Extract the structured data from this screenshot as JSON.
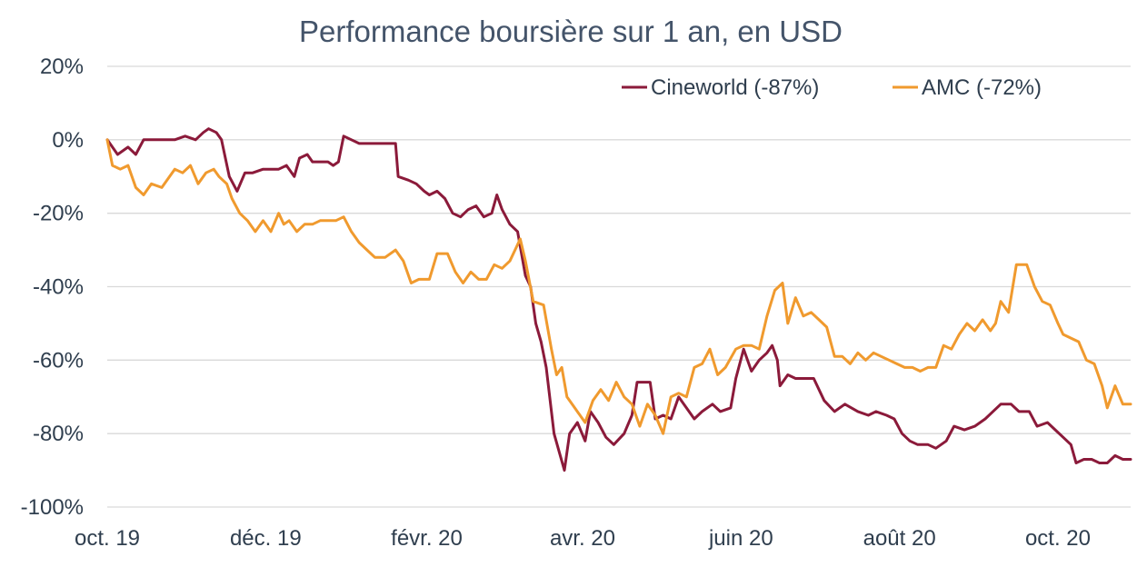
{
  "chart_data": {
    "type": "line",
    "title": "Performance boursière sur 1 an, en USD",
    "xlabel": "",
    "ylabel": "",
    "ylim": [
      -100,
      20
    ],
    "ytick_values": [
      20,
      0,
      -20,
      -40,
      -60,
      -80,
      -100
    ],
    "yticks": [
      "20%",
      "0%",
      "-20%",
      "-40%",
      "-60%",
      "-80%",
      "-100%"
    ],
    "xlim": [
      "2019-10-01",
      "2020-10-29"
    ],
    "xtick_dates": [
      "2019-10-01",
      "2019-12-01",
      "2020-02-01",
      "2020-04-01",
      "2020-06-01",
      "2020-08-01",
      "2020-10-01"
    ],
    "xticks": [
      "oct. 19",
      "déc. 19",
      "févr. 20",
      "avr. 20",
      "juin 20",
      "août 20",
      "oct. 20"
    ],
    "grid": "horizontal",
    "legend_position": "top-right",
    "colors": {
      "Cineworld (-87%)": "#8b1a3a",
      "AMC (-72%)": "#f09a2e",
      "grid": "#d9d9d9",
      "text": "#2f3e4e"
    },
    "series": [
      {
        "name": "Cineworld (-87%)",
        "points": [
          [
            "2019-10-01",
            0
          ],
          [
            "2019-10-05",
            -4
          ],
          [
            "2019-10-09",
            -2
          ],
          [
            "2019-10-12",
            -4
          ],
          [
            "2019-10-15",
            0
          ],
          [
            "2019-10-19",
            0
          ],
          [
            "2019-10-23",
            0
          ],
          [
            "2019-10-27",
            0
          ],
          [
            "2019-10-31",
            1
          ],
          [
            "2019-11-04",
            0
          ],
          [
            "2019-11-07",
            2
          ],
          [
            "2019-11-09",
            3
          ],
          [
            "2019-11-12",
            2
          ],
          [
            "2019-11-14",
            0
          ],
          [
            "2019-11-17",
            -10
          ],
          [
            "2019-11-20",
            -14
          ],
          [
            "2019-11-23",
            -9
          ],
          [
            "2019-11-26",
            -9
          ],
          [
            "2019-11-30",
            -8
          ],
          [
            "2019-12-03",
            -8
          ],
          [
            "2019-12-06",
            -8
          ],
          [
            "2019-12-09",
            -7
          ],
          [
            "2019-12-12",
            -10
          ],
          [
            "2019-12-14",
            -5
          ],
          [
            "2019-12-17",
            -4
          ],
          [
            "2019-12-19",
            -6
          ],
          [
            "2019-12-22",
            -6
          ],
          [
            "2019-12-25",
            -6
          ],
          [
            "2019-12-27",
            -7
          ],
          [
            "2019-12-29",
            -6
          ],
          [
            "2019-12-31",
            1
          ],
          [
            "2020-01-03",
            0
          ],
          [
            "2020-01-06",
            -1
          ],
          [
            "2020-01-10",
            -1
          ],
          [
            "2020-01-14",
            -1
          ],
          [
            "2020-01-17",
            -1
          ],
          [
            "2020-01-20",
            -1
          ],
          [
            "2020-01-21",
            -10
          ],
          [
            "2020-01-25",
            -11
          ],
          [
            "2020-01-28",
            -12
          ],
          [
            "2020-01-31",
            -14
          ],
          [
            "2020-02-02",
            -15
          ],
          [
            "2020-02-05",
            -14
          ],
          [
            "2020-02-08",
            -16
          ],
          [
            "2020-02-11",
            -20
          ],
          [
            "2020-02-14",
            -21
          ],
          [
            "2020-02-17",
            -19
          ],
          [
            "2020-02-20",
            -18
          ],
          [
            "2020-02-23",
            -21
          ],
          [
            "2020-02-26",
            -20
          ],
          [
            "2020-02-28",
            -15
          ],
          [
            "2020-03-01",
            -19
          ],
          [
            "2020-03-04",
            -23
          ],
          [
            "2020-03-07",
            -25
          ],
          [
            "2020-03-10",
            -37
          ],
          [
            "2020-03-12",
            -40
          ],
          [
            "2020-03-14",
            -50
          ],
          [
            "2020-03-16",
            -55
          ],
          [
            "2020-03-18",
            -62
          ],
          [
            "2020-03-21",
            -80
          ],
          [
            "2020-03-25",
            -90
          ],
          [
            "2020-03-27",
            -80
          ],
          [
            "2020-03-30",
            -77
          ],
          [
            "2020-04-02",
            -82
          ],
          [
            "2020-04-04",
            -74
          ],
          [
            "2020-04-07",
            -77
          ],
          [
            "2020-04-10",
            -81
          ],
          [
            "2020-04-13",
            -83
          ],
          [
            "2020-04-17",
            -80
          ],
          [
            "2020-04-20",
            -75
          ],
          [
            "2020-04-22",
            -66
          ],
          [
            "2020-04-27",
            -66
          ],
          [
            "2020-04-29",
            -76
          ],
          [
            "2020-05-02",
            -75
          ],
          [
            "2020-05-05",
            -76
          ],
          [
            "2020-05-08",
            -70
          ],
          [
            "2020-05-11",
            -73
          ],
          [
            "2020-05-14",
            -76
          ],
          [
            "2020-05-17",
            -74
          ],
          [
            "2020-05-21",
            -72
          ],
          [
            "2020-05-24",
            -74
          ],
          [
            "2020-05-28",
            -73
          ],
          [
            "2020-05-30",
            -65
          ],
          [
            "2020-06-02",
            -57
          ],
          [
            "2020-06-05",
            -63
          ],
          [
            "2020-06-08",
            -60
          ],
          [
            "2020-06-11",
            -58
          ],
          [
            "2020-06-13",
            -56
          ],
          [
            "2020-06-15",
            -60
          ],
          [
            "2020-06-16",
            -67
          ],
          [
            "2020-06-19",
            -64
          ],
          [
            "2020-06-22",
            -65
          ],
          [
            "2020-06-25",
            -65
          ],
          [
            "2020-06-29",
            -65
          ],
          [
            "2020-07-03",
            -71
          ],
          [
            "2020-07-07",
            -74
          ],
          [
            "2020-07-11",
            -72
          ],
          [
            "2020-07-16",
            -74
          ],
          [
            "2020-07-20",
            -75
          ],
          [
            "2020-07-23",
            -74
          ],
          [
            "2020-07-27",
            -75
          ],
          [
            "2020-07-30",
            -76
          ],
          [
            "2020-08-02",
            -80
          ],
          [
            "2020-08-05",
            -82
          ],
          [
            "2020-08-08",
            -83
          ],
          [
            "2020-08-12",
            -83
          ],
          [
            "2020-08-15",
            -84
          ],
          [
            "2020-08-19",
            -82
          ],
          [
            "2020-08-22",
            -78
          ],
          [
            "2020-08-26",
            -79
          ],
          [
            "2020-08-30",
            -78
          ],
          [
            "2020-09-03",
            -76
          ],
          [
            "2020-09-06",
            -74
          ],
          [
            "2020-09-09",
            -72
          ],
          [
            "2020-09-13",
            -72
          ],
          [
            "2020-09-16",
            -74
          ],
          [
            "2020-09-20",
            -74
          ],
          [
            "2020-09-23",
            -78
          ],
          [
            "2020-09-27",
            -77
          ],
          [
            "2020-09-30",
            -79
          ],
          [
            "2020-10-03",
            -81
          ],
          [
            "2020-10-06",
            -83
          ],
          [
            "2020-10-08",
            -88
          ],
          [
            "2020-10-11",
            -87
          ],
          [
            "2020-10-14",
            -87
          ],
          [
            "2020-10-17",
            -88
          ],
          [
            "2020-10-20",
            -88
          ],
          [
            "2020-10-23",
            -86
          ],
          [
            "2020-10-26",
            -87
          ],
          [
            "2020-10-29",
            -87
          ]
        ]
      },
      {
        "name": "AMC (-72%)",
        "points": [
          [
            "2019-10-01",
            0
          ],
          [
            "2019-10-03",
            -7
          ],
          [
            "2019-10-06",
            -8
          ],
          [
            "2019-10-09",
            -7
          ],
          [
            "2019-10-12",
            -13
          ],
          [
            "2019-10-15",
            -15
          ],
          [
            "2019-10-18",
            -12
          ],
          [
            "2019-10-22",
            -13
          ],
          [
            "2019-10-25",
            -10
          ],
          [
            "2019-10-27",
            -8
          ],
          [
            "2019-10-30",
            -9
          ],
          [
            "2019-11-02",
            -7
          ],
          [
            "2019-11-05",
            -12
          ],
          [
            "2019-11-08",
            -9
          ],
          [
            "2019-11-11",
            -8
          ],
          [
            "2019-11-13",
            -10
          ],
          [
            "2019-11-16",
            -12
          ],
          [
            "2019-11-18",
            -16
          ],
          [
            "2019-11-21",
            -20
          ],
          [
            "2019-11-24",
            -22
          ],
          [
            "2019-11-27",
            -25
          ],
          [
            "2019-11-30",
            -22
          ],
          [
            "2019-12-03",
            -25
          ],
          [
            "2019-12-06",
            -20
          ],
          [
            "2019-12-08",
            -23
          ],
          [
            "2019-12-10",
            -22
          ],
          [
            "2019-12-13",
            -25
          ],
          [
            "2019-12-16",
            -23
          ],
          [
            "2019-12-19",
            -23
          ],
          [
            "2019-12-22",
            -22
          ],
          [
            "2019-12-25",
            -22
          ],
          [
            "2019-12-28",
            -22
          ],
          [
            "2019-12-31",
            -21
          ],
          [
            "2020-01-03",
            -25
          ],
          [
            "2020-01-06",
            -28
          ],
          [
            "2020-01-09",
            -30
          ],
          [
            "2020-01-12",
            -32
          ],
          [
            "2020-01-16",
            -32
          ],
          [
            "2020-01-20",
            -30
          ],
          [
            "2020-01-23",
            -33
          ],
          [
            "2020-01-26",
            -39
          ],
          [
            "2020-01-29",
            -38
          ],
          [
            "2020-02-02",
            -38
          ],
          [
            "2020-02-05",
            -31
          ],
          [
            "2020-02-09",
            -31
          ],
          [
            "2020-02-12",
            -36
          ],
          [
            "2020-02-15",
            -39
          ],
          [
            "2020-02-18",
            -36
          ],
          [
            "2020-02-21",
            -38
          ],
          [
            "2020-02-24",
            -38
          ],
          [
            "2020-02-27",
            -34
          ],
          [
            "2020-03-01",
            -35
          ],
          [
            "2020-03-04",
            -33
          ],
          [
            "2020-03-06",
            -30
          ],
          [
            "2020-03-08",
            -27
          ],
          [
            "2020-03-10",
            -33
          ],
          [
            "2020-03-13",
            -44
          ],
          [
            "2020-03-17",
            -45
          ],
          [
            "2020-03-20",
            -57
          ],
          [
            "2020-03-22",
            -64
          ],
          [
            "2020-03-24",
            -62
          ],
          [
            "2020-03-26",
            -70
          ],
          [
            "2020-03-29",
            -73
          ],
          [
            "2020-04-02",
            -77
          ],
          [
            "2020-04-05",
            -71
          ],
          [
            "2020-04-08",
            -68
          ],
          [
            "2020-04-11",
            -71
          ],
          [
            "2020-04-14",
            -66
          ],
          [
            "2020-04-17",
            -70
          ],
          [
            "2020-04-20",
            -72
          ],
          [
            "2020-04-23",
            -78
          ],
          [
            "2020-04-26",
            -72
          ],
          [
            "2020-04-29",
            -75
          ],
          [
            "2020-05-02",
            -80
          ],
          [
            "2020-05-05",
            -70
          ],
          [
            "2020-05-08",
            -69
          ],
          [
            "2020-05-11",
            -70
          ],
          [
            "2020-05-14",
            -62
          ],
          [
            "2020-05-17",
            -61
          ],
          [
            "2020-05-20",
            -57
          ],
          [
            "2020-05-23",
            -64
          ],
          [
            "2020-05-26",
            -62
          ],
          [
            "2020-05-30",
            -57
          ],
          [
            "2020-06-02",
            -56
          ],
          [
            "2020-06-05",
            -56
          ],
          [
            "2020-06-08",
            -57
          ],
          [
            "2020-06-11",
            -48
          ],
          [
            "2020-06-14",
            -41
          ],
          [
            "2020-06-17",
            -39
          ],
          [
            "2020-06-19",
            -50
          ],
          [
            "2020-06-22",
            -43
          ],
          [
            "2020-06-25",
            -48
          ],
          [
            "2020-06-28",
            -47
          ],
          [
            "2020-07-01",
            -49
          ],
          [
            "2020-07-04",
            -51
          ],
          [
            "2020-07-07",
            -59
          ],
          [
            "2020-07-10",
            -59
          ],
          [
            "2020-07-13",
            -61
          ],
          [
            "2020-07-16",
            -58
          ],
          [
            "2020-07-19",
            -60
          ],
          [
            "2020-07-22",
            -58
          ],
          [
            "2020-07-25",
            -59
          ],
          [
            "2020-07-28",
            -60
          ],
          [
            "2020-07-31",
            -61
          ],
          [
            "2020-08-03",
            -62
          ],
          [
            "2020-08-06",
            -62
          ],
          [
            "2020-08-09",
            -63
          ],
          [
            "2020-08-12",
            -62
          ],
          [
            "2020-08-15",
            -62
          ],
          [
            "2020-08-18",
            -56
          ],
          [
            "2020-08-21",
            -57
          ],
          [
            "2020-08-24",
            -53
          ],
          [
            "2020-08-27",
            -50
          ],
          [
            "2020-08-30",
            -52
          ],
          [
            "2020-09-02",
            -49
          ],
          [
            "2020-09-05",
            -52
          ],
          [
            "2020-09-07",
            -50
          ],
          [
            "2020-09-09",
            -44
          ],
          [
            "2020-09-12",
            -47
          ],
          [
            "2020-09-15",
            -34
          ],
          [
            "2020-09-17",
            -34
          ],
          [
            "2020-09-19",
            -34
          ],
          [
            "2020-09-22",
            -40
          ],
          [
            "2020-09-25",
            -44
          ],
          [
            "2020-09-28",
            -45
          ],
          [
            "2020-10-01",
            -50
          ],
          [
            "2020-10-03",
            -53
          ],
          [
            "2020-10-06",
            -54
          ],
          [
            "2020-10-09",
            -55
          ],
          [
            "2020-10-12",
            -60
          ],
          [
            "2020-10-15",
            -61
          ],
          [
            "2020-10-18",
            -67
          ],
          [
            "2020-10-20",
            -73
          ],
          [
            "2020-10-23",
            -67
          ],
          [
            "2020-10-26",
            -72
          ],
          [
            "2020-10-29",
            -72
          ]
        ]
      }
    ]
  }
}
